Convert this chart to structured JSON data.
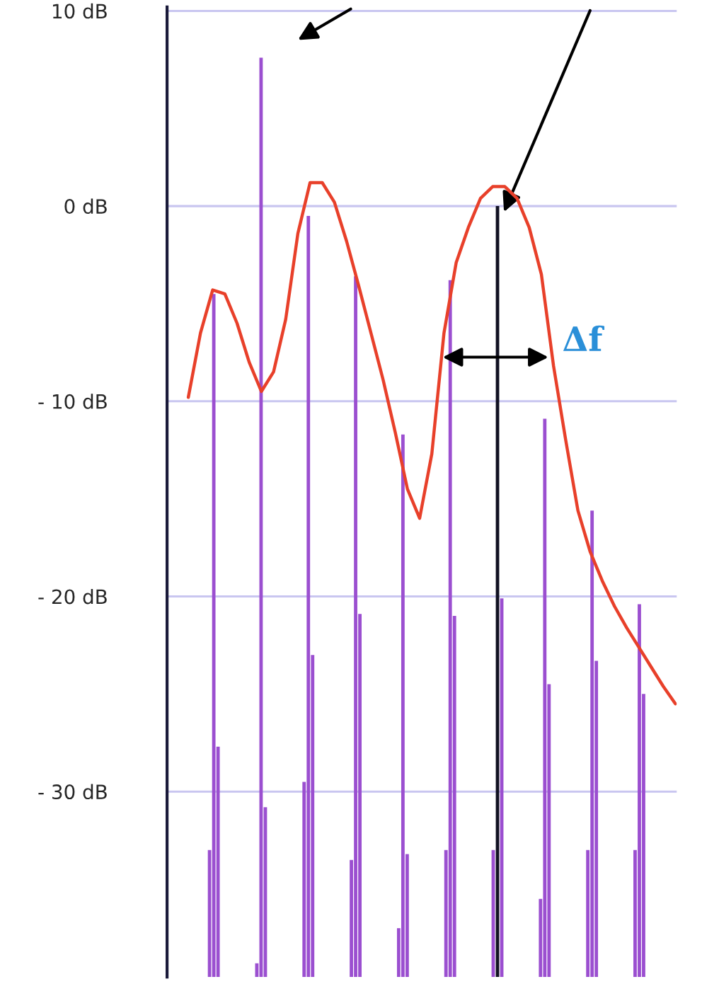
{
  "chart_data": [
    {
      "type": "bar",
      "categories": [
        null,
        null,
        null,
        null,
        null,
        null,
        null,
        null,
        null,
        null
      ],
      "series": [
        {
          "color": "#9b4fd0",
          "base": [
            -39.5,
            -39.5,
            -39.5,
            -39.5,
            -39.5,
            -39.5,
            -39.5,
            -39.5,
            -39.5,
            -39.5
          ],
          "values": [
            6.5,
            0.7,
            10.0,
            6.0,
            2.5,
            6.5,
            6.5,
            4.0,
            6.5,
            6.5
          ]
        },
        {
          "colors": [
            "#9b4fd0",
            "#9b4fd0",
            "#9b4fd0",
            "#9b4fd0",
            "#9b4fd0",
            "#9b4fd0",
            "#111122",
            "#9b4fd0",
            "#9b4fd0",
            "#9b4fd0"
          ],
          "base": [
            -39.5,
            -39.5,
            -39.5,
            -39.5,
            -39.5,
            -39.5,
            -39.5,
            -39.5,
            -39.5,
            -39.5
          ],
          "values": [
            35.0,
            47.1,
            39.0,
            35.9,
            27.8,
            35.7,
            39.5,
            28.6,
            23.9,
            19.1
          ]
        },
        {
          "color": "#9b4fd0",
          "base": [
            -39.5,
            -39.5,
            -39.5,
            -39.5,
            -39.5,
            -39.5,
            -39.5,
            -39.5,
            -39.5,
            -39.5
          ],
          "values": [
            11.8,
            8.7,
            16.5,
            18.6,
            6.3,
            18.5,
            19.4,
            15.0,
            16.2,
            14.5
          ]
        }
      ],
      "ylim": [
        -39.5,
        10.2
      ],
      "yticks": [
        {
          "value": 10,
          "label": "10 dB"
        },
        {
          "value": 0,
          "label": "0 dB"
        },
        {
          "value": -10,
          "label": "- 10 dB"
        },
        {
          "value": -20,
          "label": "- 20 dB"
        },
        {
          "value": -30,
          "label": "- 30 dB"
        }
      ],
      "grid": "y",
      "annotations": [
        "Δf"
      ]
    },
    {
      "type": "line",
      "categories": [
        null,
        null,
        null,
        null,
        null,
        null,
        null,
        null,
        null,
        null,
        null,
        null,
        null,
        null,
        null,
        null,
        null,
        null,
        null,
        null,
        null,
        null,
        null,
        null,
        null,
        null,
        null,
        null,
        null,
        null,
        null,
        null,
        null,
        null,
        null,
        null,
        null,
        null,
        null,
        null,
        null
      ],
      "series": [
        {
          "color": "#e8402a",
          "values": [
            -9.8,
            -6.5,
            -4.3,
            -4.5,
            -6.0,
            -8.0,
            -9.5,
            -8.5,
            -5.8,
            -1.4,
            1.2,
            1.2,
            0.2,
            -1.8,
            -4.1,
            -6.5,
            -8.9,
            -11.6,
            -14.5,
            -16.0,
            -12.7,
            -6.5,
            -2.9,
            -1.1,
            0.4,
            1.0,
            1.0,
            0.4,
            -1.1,
            -3.5,
            -8.2,
            -12.0,
            -15.6,
            -17.7,
            -19.2,
            -20.5,
            -21.6,
            -22.6,
            -23.6,
            -24.6,
            -25.5
          ]
        }
      ],
      "ylim": [
        -39.5,
        10.2
      ],
      "tick_labels": false
    }
  ]
}
